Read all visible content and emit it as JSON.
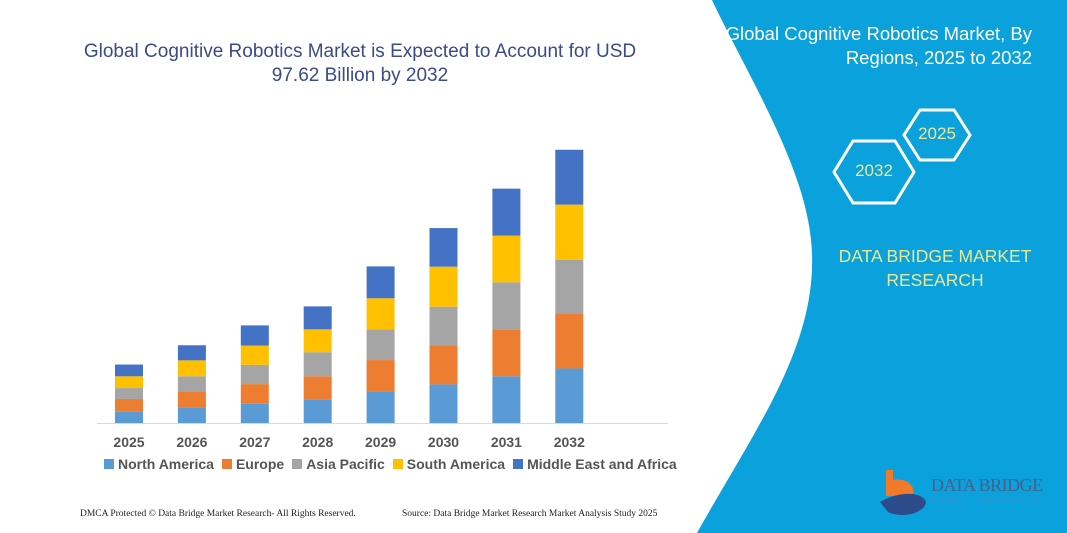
{
  "chart_data": {
    "type": "bar",
    "stacked": true,
    "title": "Global Cognitive Robotics Market is Expected to Account for USD 97.62 Billion by 2032",
    "categories": [
      "2025",
      "2026",
      "2027",
      "2028",
      "2029",
      "2030",
      "2031",
      "2032"
    ],
    "series": [
      {
        "name": "North America",
        "color": "#5b9bd5",
        "values": [
          4.2,
          5.6,
          6.9,
          8.5,
          11.3,
          13.8,
          16.7,
          19.5
        ]
      },
      {
        "name": "Europe",
        "color": "#ed7d31",
        "values": [
          4.4,
          5.7,
          7.0,
          8.2,
          11.2,
          13.9,
          16.8,
          19.7
        ]
      },
      {
        "name": "Asia Pacific",
        "color": "#a5a5a5",
        "values": [
          3.9,
          5.4,
          6.9,
          8.6,
          11.0,
          13.9,
          16.8,
          19.2
        ]
      },
      {
        "name": "South America",
        "color": "#ffc000",
        "values": [
          4.2,
          5.7,
          6.9,
          8.2,
          11.1,
          14.3,
          16.7,
          19.7
        ]
      },
      {
        "name": "Middle East and Africa",
        "color": "#4472c4",
        "values": [
          4.2,
          5.4,
          7.2,
          8.2,
          11.4,
          13.8,
          16.8,
          19.6
        ]
      }
    ],
    "ylim": [
      0,
      97.62
    ],
    "grid": false,
    "legend": "bottom"
  },
  "side_panel": {
    "title": "Global Cognitive Robotics Market, By Regions, 2025 to 2032",
    "hex_start": "2025",
    "hex_end": "2032",
    "brand": "DATA BRIDGE MARKET RESEARCH",
    "color": "#0aa1dd"
  },
  "logo": {
    "name": "DATA BRIDGE",
    "sub": "MARKET RESEARCH"
  },
  "footer": {
    "left": "DMCA Protected © Data Bridge Market Research-  All Rights Reserved.",
    "right": "Source: Data Bridge Market Research  Market Analysis Study 2025"
  }
}
